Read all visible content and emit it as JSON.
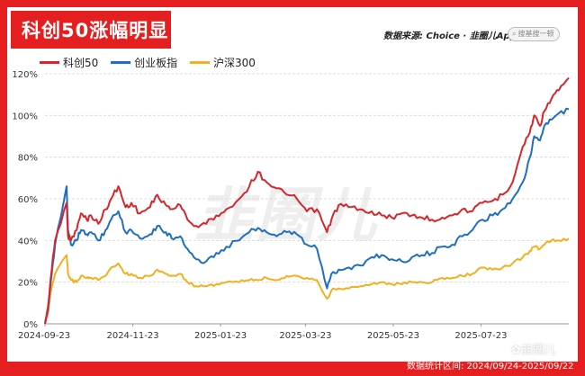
{
  "header": {
    "title": "科创50涨幅明显",
    "source": "数据来源: Choice · 韭圈儿App",
    "search_placeholder": "搜基搜一顿"
  },
  "footer": {
    "range_text": "数据统计区间: 2024/09/24-2025/09/22"
  },
  "badge": {
    "text": "韭圈儿",
    "icon": "paw-icon"
  },
  "watermark": {
    "text": "韭圈儿"
  },
  "colors": {
    "frame": "#e51f1f",
    "kc50": "#d7262b",
    "cy": "#1f6fbf",
    "hs300": "#f2b01e"
  },
  "chart_data": {
    "type": "line",
    "title": "科创50涨幅明显",
    "xlabel": "",
    "ylabel": "",
    "ylim": [
      0,
      120
    ],
    "ytick_labels": [
      "0%",
      "20%",
      "40%",
      "60%",
      "80%",
      "100%",
      "120%"
    ],
    "xtick_labels": [
      "2024-09-23",
      "2024-11-23",
      "2025-01-23",
      "2025-03-23",
      "2025-05-23",
      "2025-07-23"
    ],
    "xlim": [
      "2024-09-23",
      "2025-09-22"
    ],
    "grid": "horizontal",
    "legend_position": "top-left",
    "series": [
      {
        "name": "科创50",
        "color": "#d7262b",
        "points": [
          [
            "2024-09-23",
            0
          ],
          [
            "2024-09-25",
            8
          ],
          [
            "2024-09-27",
            22
          ],
          [
            "2024-09-30",
            40
          ],
          [
            "2024-10-08",
            58
          ],
          [
            "2024-10-09",
            42
          ],
          [
            "2024-10-11",
            40
          ],
          [
            "2024-10-15",
            45
          ],
          [
            "2024-10-18",
            53
          ],
          [
            "2024-10-22",
            50
          ],
          [
            "2024-10-25",
            52
          ],
          [
            "2024-10-30",
            48
          ],
          [
            "2024-11-04",
            55
          ],
          [
            "2024-11-08",
            60
          ],
          [
            "2024-11-13",
            66
          ],
          [
            "2024-11-18",
            56
          ],
          [
            "2024-11-22",
            58
          ],
          [
            "2024-11-28",
            53
          ],
          [
            "2024-12-05",
            56
          ],
          [
            "2024-12-10",
            62
          ],
          [
            "2024-12-16",
            57
          ],
          [
            "2024-12-20",
            55
          ],
          [
            "2024-12-26",
            57
          ],
          [
            "2024-12-31",
            50
          ],
          [
            "2025-01-06",
            47
          ],
          [
            "2025-01-13",
            48
          ],
          [
            "2025-01-20",
            52
          ],
          [
            "2025-01-27",
            55
          ],
          [
            "2025-02-05",
            60
          ],
          [
            "2025-02-12",
            66
          ],
          [
            "2025-02-18",
            73
          ],
          [
            "2025-02-24",
            68
          ],
          [
            "2025-03-03",
            65
          ],
          [
            "2025-03-10",
            62
          ],
          [
            "2025-03-17",
            60
          ],
          [
            "2025-03-24",
            54
          ],
          [
            "2025-03-31",
            55
          ],
          [
            "2025-04-07",
            44
          ],
          [
            "2025-04-10",
            50
          ],
          [
            "2025-04-15",
            57
          ],
          [
            "2025-04-22",
            56
          ],
          [
            "2025-04-30",
            55
          ],
          [
            "2025-05-08",
            54
          ],
          [
            "2025-05-15",
            52
          ],
          [
            "2025-05-22",
            51
          ],
          [
            "2025-05-29",
            53
          ],
          [
            "2025-06-05",
            52
          ],
          [
            "2025-06-12",
            51
          ],
          [
            "2025-06-19",
            50
          ],
          [
            "2025-06-26",
            51
          ],
          [
            "2025-07-03",
            52
          ],
          [
            "2025-07-10",
            55
          ],
          [
            "2025-07-17",
            54
          ],
          [
            "2025-07-24",
            58
          ],
          [
            "2025-07-31",
            59
          ],
          [
            "2025-08-07",
            62
          ],
          [
            "2025-08-14",
            68
          ],
          [
            "2025-08-21",
            85
          ],
          [
            "2025-08-26",
            92
          ],
          [
            "2025-08-29",
            100
          ],
          [
            "2025-09-02",
            95
          ],
          [
            "2025-09-05",
            102
          ],
          [
            "2025-09-10",
            108
          ],
          [
            "2025-09-15",
            112
          ],
          [
            "2025-09-22",
            118
          ]
        ]
      },
      {
        "name": "创业板指",
        "color": "#1f6fbf",
        "points": [
          [
            "2024-09-23",
            0
          ],
          [
            "2024-09-25",
            6
          ],
          [
            "2024-09-27",
            20
          ],
          [
            "2024-09-30",
            38
          ],
          [
            "2024-10-08",
            66
          ],
          [
            "2024-10-09",
            45
          ],
          [
            "2024-10-11",
            38
          ],
          [
            "2024-10-15",
            40
          ],
          [
            "2024-10-18",
            45
          ],
          [
            "2024-10-22",
            43
          ],
          [
            "2024-10-25",
            44
          ],
          [
            "2024-10-30",
            40
          ],
          [
            "2024-11-04",
            45
          ],
          [
            "2024-11-08",
            50
          ],
          [
            "2024-11-13",
            54
          ],
          [
            "2024-11-18",
            44
          ],
          [
            "2024-11-22",
            45
          ],
          [
            "2024-11-28",
            41
          ],
          [
            "2024-12-05",
            43
          ],
          [
            "2024-12-10",
            47
          ],
          [
            "2024-12-16",
            44
          ],
          [
            "2024-12-20",
            41
          ],
          [
            "2024-12-26",
            42
          ],
          [
            "2024-12-31",
            36
          ],
          [
            "2025-01-06",
            31
          ],
          [
            "2025-01-13",
            30
          ],
          [
            "2025-01-20",
            34
          ],
          [
            "2025-01-27",
            37
          ],
          [
            "2025-02-05",
            40
          ],
          [
            "2025-02-12",
            44
          ],
          [
            "2025-02-18",
            46
          ],
          [
            "2025-02-24",
            44
          ],
          [
            "2025-03-03",
            42
          ],
          [
            "2025-03-10",
            44
          ],
          [
            "2025-03-17",
            43
          ],
          [
            "2025-03-24",
            38
          ],
          [
            "2025-03-31",
            36
          ],
          [
            "2025-04-07",
            17
          ],
          [
            "2025-04-10",
            24
          ],
          [
            "2025-04-15",
            26
          ],
          [
            "2025-04-22",
            27
          ],
          [
            "2025-04-30",
            28
          ],
          [
            "2025-05-08",
            32
          ],
          [
            "2025-05-15",
            33
          ],
          [
            "2025-05-22",
            31
          ],
          [
            "2025-05-29",
            30
          ],
          [
            "2025-06-05",
            32
          ],
          [
            "2025-06-12",
            33
          ],
          [
            "2025-06-19",
            34
          ],
          [
            "2025-06-26",
            37
          ],
          [
            "2025-07-03",
            38
          ],
          [
            "2025-07-10",
            42
          ],
          [
            "2025-07-17",
            45
          ],
          [
            "2025-07-24",
            50
          ],
          [
            "2025-07-31",
            52
          ],
          [
            "2025-08-07",
            55
          ],
          [
            "2025-08-14",
            60
          ],
          [
            "2025-08-21",
            68
          ],
          [
            "2025-08-26",
            80
          ],
          [
            "2025-08-29",
            90
          ],
          [
            "2025-09-02",
            88
          ],
          [
            "2025-09-05",
            95
          ],
          [
            "2025-09-10",
            98
          ],
          [
            "2025-09-15",
            101
          ],
          [
            "2025-09-22",
            103
          ]
        ]
      },
      {
        "name": "沪深300",
        "color": "#f2b01e",
        "points": [
          [
            "2024-09-23",
            0
          ],
          [
            "2024-09-25",
            5
          ],
          [
            "2024-09-27",
            15
          ],
          [
            "2024-09-30",
            24
          ],
          [
            "2024-10-08",
            33
          ],
          [
            "2024-10-09",
            24
          ],
          [
            "2024-10-11",
            21
          ],
          [
            "2024-10-15",
            20
          ],
          [
            "2024-10-18",
            23
          ],
          [
            "2024-10-22",
            22
          ],
          [
            "2024-10-25",
            22
          ],
          [
            "2024-10-30",
            21
          ],
          [
            "2024-11-04",
            23
          ],
          [
            "2024-11-08",
            27
          ],
          [
            "2024-11-13",
            29
          ],
          [
            "2024-11-18",
            24
          ],
          [
            "2024-11-22",
            24
          ],
          [
            "2024-11-28",
            22
          ],
          [
            "2024-12-05",
            23
          ],
          [
            "2024-12-10",
            26
          ],
          [
            "2024-12-16",
            24
          ],
          [
            "2024-12-20",
            23
          ],
          [
            "2024-12-26",
            24
          ],
          [
            "2024-12-31",
            20
          ],
          [
            "2025-01-06",
            18
          ],
          [
            "2025-01-13",
            18
          ],
          [
            "2025-01-20",
            19
          ],
          [
            "2025-01-27",
            20
          ],
          [
            "2025-02-05",
            20
          ],
          [
            "2025-02-12",
            21
          ],
          [
            "2025-02-18",
            21
          ],
          [
            "2025-02-24",
            22
          ],
          [
            "2025-03-03",
            21
          ],
          [
            "2025-03-10",
            23
          ],
          [
            "2025-03-17",
            23
          ],
          [
            "2025-03-24",
            22
          ],
          [
            "2025-03-31",
            21
          ],
          [
            "2025-04-07",
            12
          ],
          [
            "2025-04-10",
            16
          ],
          [
            "2025-04-15",
            17
          ],
          [
            "2025-04-22",
            17
          ],
          [
            "2025-04-30",
            18
          ],
          [
            "2025-05-08",
            19
          ],
          [
            "2025-05-15",
            20
          ],
          [
            "2025-05-22",
            19
          ],
          [
            "2025-05-29",
            19
          ],
          [
            "2025-06-05",
            20
          ],
          [
            "2025-06-12",
            20
          ],
          [
            "2025-06-19",
            20
          ],
          [
            "2025-06-26",
            22
          ],
          [
            "2025-07-03",
            22
          ],
          [
            "2025-07-10",
            23
          ],
          [
            "2025-07-17",
            24
          ],
          [
            "2025-07-24",
            27
          ],
          [
            "2025-07-31",
            26
          ],
          [
            "2025-08-07",
            27
          ],
          [
            "2025-08-14",
            29
          ],
          [
            "2025-08-21",
            32
          ],
          [
            "2025-08-26",
            35
          ],
          [
            "2025-08-29",
            37
          ],
          [
            "2025-09-02",
            36
          ],
          [
            "2025-09-05",
            38
          ],
          [
            "2025-09-10",
            40
          ],
          [
            "2025-09-15",
            40
          ],
          [
            "2025-09-22",
            41
          ]
        ]
      }
    ]
  }
}
